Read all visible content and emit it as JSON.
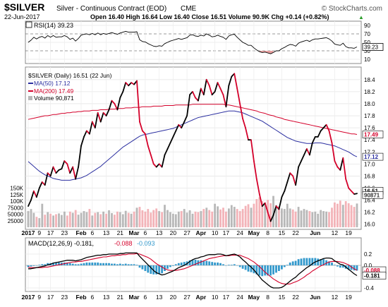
{
  "header": {
    "symbol": "$SILVER",
    "description": "Silver - Continuous Contract (EOD)",
    "exchange": "CME",
    "source": "© StockCharts.com",
    "date": "22-Jun-2017",
    "quote": "Open 16.40  High 16.64  Low 16.40  Close 16.51  Volume 90.9K  Chg +0.14 (+0.82%)",
    "quote_arrow": "▲"
  },
  "rsi_panel": {
    "label": "RSI(14) 39.23",
    "current_badge": "39.23",
    "tick_labels": [
      "90",
      "70",
      "50",
      "30",
      "10"
    ]
  },
  "price_panel": {
    "legend": {
      "price": "$SILVER (Daily) 16.51 (22 Jun)",
      "ma50": "MA(50) 17.12",
      "ma200": "MA(200) 17.49",
      "volume": "Volume 90,871"
    },
    "tick_labels": [
      "18.4",
      "18.2",
      "18.0",
      "17.8",
      "17.6",
      "17.4",
      "17.2",
      "17.0",
      "16.8",
      "16.6",
      "16.4",
      "16.2",
      "16.0"
    ],
    "badges": {
      "ma200": "17.49",
      "ma50": "17.12",
      "price": "16.51",
      "volume": "90871"
    },
    "volume_tick_labels": [
      "150K",
      "125K",
      "100K",
      "75000",
      "50000",
      "25000"
    ]
  },
  "macd_panel": {
    "label": "MACD(12,26,9) -0.181, ",
    "signal_value": "-0.088",
    "histogram_value": "-0.093",
    "tick_labels": [
      "0.2",
      "0.0",
      "-0.2",
      "-0.4"
    ],
    "badges": {
      "signal": "-0.088",
      "macd": "-0.181"
    }
  },
  "x_axis": {
    "tick_labels": [
      "2017",
      "9",
      "17",
      "23",
      "Feb",
      "6",
      "13",
      "21",
      "Mar",
      "6",
      "13",
      "20",
      "27",
      "Apr",
      "10",
      "17",
      "24",
      "May",
      "8",
      "15",
      "22",
      "Jun",
      "12",
      "19"
    ]
  },
  "colors": {
    "price_up": "#000000",
    "price_down": "#d4002a",
    "ma50": "#2b2fa0",
    "ma200": "#d4002a",
    "volume_up": "#b8b8b8",
    "volume_down": "#f3b3b8",
    "macd_hist": "#3399cc",
    "panel_border": "#888888",
    "grid": "#e6e6e6"
  },
  "chart_data": {
    "type": "line",
    "x_dates": [
      "2017-01-03",
      "2017-01-04",
      "2017-01-05",
      "2017-01-06",
      "2017-01-09",
      "2017-01-10",
      "2017-01-11",
      "2017-01-12",
      "2017-01-13",
      "2017-01-17",
      "2017-01-18",
      "2017-01-19",
      "2017-01-20",
      "2017-01-23",
      "2017-01-24",
      "2017-01-25",
      "2017-01-26",
      "2017-01-27",
      "2017-01-30",
      "2017-01-31",
      "2017-02-01",
      "2017-02-02",
      "2017-02-03",
      "2017-02-06",
      "2017-02-07",
      "2017-02-08",
      "2017-02-09",
      "2017-02-10",
      "2017-02-13",
      "2017-02-14",
      "2017-02-15",
      "2017-02-16",
      "2017-02-17",
      "2017-02-21",
      "2017-02-22",
      "2017-02-23",
      "2017-02-24",
      "2017-02-27",
      "2017-02-28",
      "2017-03-01",
      "2017-03-02",
      "2017-03-03",
      "2017-03-06",
      "2017-03-07",
      "2017-03-08",
      "2017-03-09",
      "2017-03-10",
      "2017-03-13",
      "2017-03-14",
      "2017-03-15",
      "2017-03-16",
      "2017-03-17",
      "2017-03-20",
      "2017-03-21",
      "2017-03-22",
      "2017-03-23",
      "2017-03-24",
      "2017-03-27",
      "2017-03-28",
      "2017-03-29",
      "2017-03-30",
      "2017-03-31",
      "2017-04-03",
      "2017-04-04",
      "2017-04-05",
      "2017-04-06",
      "2017-04-07",
      "2017-04-10",
      "2017-04-11",
      "2017-04-12",
      "2017-04-13",
      "2017-04-17",
      "2017-04-18",
      "2017-04-19",
      "2017-04-20",
      "2017-04-21",
      "2017-04-24",
      "2017-04-25",
      "2017-04-26",
      "2017-04-27",
      "2017-04-28",
      "2017-05-01",
      "2017-05-02",
      "2017-05-03",
      "2017-05-04",
      "2017-05-05",
      "2017-05-08",
      "2017-05-09",
      "2017-05-10",
      "2017-05-11",
      "2017-05-12",
      "2017-05-15",
      "2017-05-16",
      "2017-05-17",
      "2017-05-18",
      "2017-05-19",
      "2017-05-22",
      "2017-05-23",
      "2017-05-24",
      "2017-05-25",
      "2017-05-26",
      "2017-05-30",
      "2017-05-31",
      "2017-06-01",
      "2017-06-02",
      "2017-06-05",
      "2017-06-06",
      "2017-06-07",
      "2017-06-08",
      "2017-06-09",
      "2017-06-12",
      "2017-06-13",
      "2017-06-14",
      "2017-06-15",
      "2017-06-16",
      "2017-06-19",
      "2017-06-20",
      "2017-06-21",
      "2017-06-22"
    ],
    "close": [
      16.3,
      16.4,
      16.55,
      16.45,
      16.6,
      16.7,
      16.65,
      16.85,
      16.8,
      16.95,
      16.85,
      16.9,
      16.92,
      17.05,
      17.0,
      16.85,
      16.95,
      16.75,
      16.95,
      17.3,
      17.45,
      17.55,
      17.5,
      17.7,
      17.6,
      17.85,
      17.7,
      17.85,
      17.8,
      17.9,
      18.05,
      18.0,
      17.9,
      18.1,
      18.2,
      18.35,
      18.3,
      18.35,
      18.32,
      18.38,
      17.7,
      17.55,
      17.5,
      17.3,
      17.15,
      17.0,
      16.95,
      17.0,
      16.95,
      17.15,
      17.25,
      17.35,
      17.45,
      17.55,
      17.65,
      17.6,
      17.7,
      17.8,
      18.15,
      18.2,
      18.1,
      18.05,
      18.25,
      18.15,
      18.4,
      18.3,
      18.15,
      18.2,
      18.35,
      18.25,
      18.15,
      17.95,
      18.3,
      18.45,
      18.5,
      18.25,
      18.0,
      17.75,
      17.6,
      17.4,
      17.4,
      17.05,
      16.75,
      16.5,
      16.3,
      16.35,
      16.2,
      16.05,
      16.15,
      16.3,
      16.25,
      16.45,
      16.55,
      16.7,
      16.85,
      16.8,
      16.65,
      16.95,
      17.05,
      17.15,
      17.25,
      17.15,
      17.35,
      17.45,
      17.45,
      17.55,
      17.6,
      17.65,
      17.55,
      17.35,
      17.05,
      16.95,
      16.9,
      17.1,
      16.75,
      16.6,
      16.55,
      16.5,
      16.51
    ],
    "ma50": [
      17.04,
      17.0,
      16.96,
      16.92,
      16.88,
      16.85,
      16.82,
      16.8,
      16.78,
      16.76,
      16.75,
      16.74,
      16.73,
      16.73,
      16.73,
      16.73,
      16.74,
      16.75,
      16.76,
      16.77,
      16.79,
      16.81,
      16.84,
      16.87,
      16.9,
      16.93,
      16.96,
      17.0,
      17.04,
      17.08,
      17.12,
      17.16,
      17.2,
      17.24,
      17.28,
      17.31,
      17.34,
      17.37,
      17.4,
      17.43,
      17.46,
      17.48,
      17.49,
      17.5,
      17.51,
      17.52,
      17.53,
      17.54,
      17.55,
      17.56,
      17.57,
      17.58,
      17.59,
      17.61,
      17.63,
      17.65,
      17.67,
      17.69,
      17.71,
      17.73,
      17.75,
      17.77,
      17.78,
      17.79,
      17.8,
      17.81,
      17.82,
      17.83,
      17.84,
      17.85,
      17.86,
      17.87,
      17.88,
      17.88,
      17.88,
      17.87,
      17.86,
      17.85,
      17.83,
      17.81,
      17.79,
      17.77,
      17.75,
      17.73,
      17.71,
      17.68,
      17.65,
      17.62,
      17.59,
      17.56,
      17.53,
      17.5,
      17.47,
      17.44,
      17.42,
      17.4,
      17.38,
      17.37,
      17.36,
      17.35,
      17.34,
      17.34,
      17.34,
      17.35,
      17.35,
      17.35,
      17.34,
      17.33,
      17.32,
      17.31,
      17.3,
      17.28,
      17.26,
      17.24,
      17.22,
      17.2,
      17.17,
      17.14,
      17.12
    ],
    "ma200": [
      17.74,
      17.75,
      17.76,
      17.77,
      17.78,
      17.79,
      17.8,
      17.8,
      17.81,
      17.82,
      17.82,
      17.83,
      17.84,
      17.84,
      17.85,
      17.85,
      17.86,
      17.86,
      17.87,
      17.87,
      17.88,
      17.88,
      17.88,
      17.89,
      17.89,
      17.89,
      17.9,
      17.9,
      17.9,
      17.91,
      17.91,
      17.91,
      17.92,
      17.92,
      17.92,
      17.93,
      17.93,
      17.93,
      17.94,
      17.94,
      17.94,
      17.95,
      17.95,
      17.95,
      17.95,
      17.96,
      17.96,
      17.96,
      17.96,
      17.97,
      17.97,
      17.97,
      17.97,
      17.98,
      17.98,
      17.98,
      17.98,
      17.98,
      17.98,
      17.99,
      17.99,
      17.99,
      17.99,
      17.99,
      17.99,
      17.99,
      17.99,
      17.99,
      17.99,
      17.99,
      17.99,
      17.98,
      17.98,
      17.97,
      17.96,
      17.95,
      17.94,
      17.93,
      17.92,
      17.91,
      17.9,
      17.89,
      17.88,
      17.86,
      17.85,
      17.84,
      17.82,
      17.81,
      17.8,
      17.78,
      17.77,
      17.76,
      17.74,
      17.73,
      17.72,
      17.71,
      17.7,
      17.69,
      17.68,
      17.67,
      17.66,
      17.65,
      17.64,
      17.63,
      17.62,
      17.61,
      17.6,
      17.59,
      17.58,
      17.57,
      17.56,
      17.55,
      17.54,
      17.53,
      17.52,
      17.51,
      17.5,
      17.5,
      17.49
    ],
    "volume": [
      62000,
      70000,
      55000,
      40000,
      35000,
      90000,
      48000,
      58000,
      52000,
      45000,
      50000,
      53000,
      47000,
      60000,
      45000,
      60000,
      55000,
      66000,
      48000,
      55000,
      62000,
      58000,
      70000,
      45000,
      55000,
      58000,
      50000,
      60000,
      52000,
      65000,
      54000,
      48000,
      60000,
      58000,
      50000,
      63000,
      55000,
      52000,
      60000,
      75000,
      78000,
      65000,
      60000,
      70000,
      56000,
      66000,
      72000,
      62000,
      58000,
      86000,
      66000,
      58000,
      52000,
      50000,
      60000,
      62000,
      70000,
      56000,
      65000,
      52000,
      60000,
      58000,
      62000,
      70000,
      75000,
      66000,
      60000,
      90000,
      80000,
      68000,
      75000,
      60000,
      72000,
      85000,
      78000,
      70000,
      62000,
      70000,
      82000,
      88000,
      75000,
      90000,
      108000,
      115000,
      100000,
      95000,
      105000,
      92000,
      120000,
      85000,
      80000,
      72000,
      70000,
      90000,
      72000,
      68000,
      60000,
      78000,
      64000,
      70000,
      66000,
      62000,
      58000,
      60000,
      52000,
      66000,
      62000,
      60000,
      58000,
      75000,
      95000,
      90000,
      102000,
      86000,
      100000,
      92000,
      85000,
      78000,
      90871
    ],
    "rsi": [
      50,
      55,
      62,
      58,
      62,
      64,
      60,
      66,
      62,
      66,
      62,
      63,
      63,
      66,
      63,
      57,
      60,
      53,
      59,
      67,
      69,
      70,
      68,
      71,
      68,
      72,
      68,
      71,
      69,
      71,
      73,
      71,
      69,
      72,
      74,
      76,
      74,
      74,
      74,
      75,
      56,
      52,
      51,
      47,
      44,
      41,
      40,
      42,
      41,
      47,
      50,
      53,
      55,
      57,
      59,
      57,
      59,
      61,
      67,
      68,
      65,
      64,
      67,
      65,
      70,
      67,
      63,
      64,
      67,
      64,
      62,
      57,
      65,
      68,
      69,
      62,
      56,
      50,
      47,
      43,
      43,
      37,
      32,
      28,
      26,
      27,
      25,
      23,
      26,
      30,
      30,
      35,
      38,
      42,
      45,
      44,
      41,
      48,
      51,
      53,
      55,
      52,
      56,
      58,
      58,
      59,
      60,
      61,
      58,
      53,
      46,
      44,
      43,
      48,
      40,
      37,
      37,
      36,
      39.23
    ],
    "macd": [
      -0.06,
      -0.06,
      -0.05,
      -0.04,
      -0.03,
      -0.02,
      -0.01,
      0.01,
      0.02,
      0.04,
      0.05,
      0.06,
      0.07,
      0.08,
      0.09,
      0.09,
      0.09,
      0.08,
      0.09,
      0.1,
      0.12,
      0.14,
      0.15,
      0.16,
      0.17,
      0.18,
      0.18,
      0.19,
      0.19,
      0.2,
      0.2,
      0.2,
      0.2,
      0.21,
      0.21,
      0.22,
      0.22,
      0.22,
      0.22,
      0.22,
      0.16,
      0.11,
      0.06,
      0.01,
      -0.04,
      -0.09,
      -0.13,
      -0.15,
      -0.17,
      -0.16,
      -0.14,
      -0.12,
      -0.1,
      -0.07,
      -0.04,
      -0.02,
      0.0,
      0.03,
      0.07,
      0.1,
      0.12,
      0.13,
      0.15,
      0.16,
      0.18,
      0.19,
      0.19,
      0.19,
      0.2,
      0.2,
      0.19,
      0.17,
      0.18,
      0.19,
      0.2,
      0.18,
      0.15,
      0.1,
      0.06,
      0.01,
      -0.03,
      -0.08,
      -0.14,
      -0.2,
      -0.26,
      -0.3,
      -0.34,
      -0.38,
      -0.4,
      -0.4,
      -0.4,
      -0.39,
      -0.36,
      -0.32,
      -0.28,
      -0.24,
      -0.21,
      -0.16,
      -0.12,
      -0.08,
      -0.04,
      -0.01,
      0.03,
      0.06,
      0.08,
      0.1,
      0.12,
      0.13,
      0.13,
      0.12,
      0.08,
      0.05,
      0.02,
      0.01,
      -0.03,
      -0.07,
      -0.11,
      -0.15,
      -0.181
    ],
    "macd_signal": [
      -0.03,
      -0.04,
      -0.04,
      -0.04,
      -0.04,
      -0.04,
      -0.03,
      -0.03,
      -0.02,
      -0.01,
      0.0,
      0.01,
      0.02,
      0.03,
      0.04,
      0.05,
      0.06,
      0.06,
      0.07,
      0.07,
      0.08,
      0.09,
      0.1,
      0.11,
      0.12,
      0.13,
      0.14,
      0.15,
      0.15,
      0.16,
      0.17,
      0.17,
      0.18,
      0.18,
      0.19,
      0.19,
      0.2,
      0.2,
      0.2,
      0.21,
      0.2,
      0.18,
      0.16,
      0.14,
      0.11,
      0.07,
      0.03,
      0.0,
      -0.03,
      -0.06,
      -0.08,
      -0.09,
      -0.09,
      -0.09,
      -0.08,
      -0.07,
      -0.06,
      -0.04,
      -0.02,
      0.0,
      0.02,
      0.04,
      0.06,
      0.08,
      0.1,
      0.12,
      0.13,
      0.14,
      0.15,
      0.16,
      0.17,
      0.17,
      0.17,
      0.18,
      0.18,
      0.18,
      0.18,
      0.16,
      0.14,
      0.12,
      0.09,
      0.06,
      0.02,
      -0.02,
      -0.07,
      -0.12,
      -0.16,
      -0.2,
      -0.24,
      -0.27,
      -0.3,
      -0.32,
      -0.33,
      -0.33,
      -0.33,
      -0.31,
      -0.29,
      -0.27,
      -0.24,
      -0.21,
      -0.17,
      -0.14,
      -0.1,
      -0.07,
      -0.04,
      -0.01,
      0.01,
      0.04,
      0.06,
      0.07,
      0.07,
      0.07,
      0.06,
      0.05,
      0.03,
      0.01,
      -0.03,
      -0.06,
      -0.088
    ],
    "macd_hist_values": [
      -0.03,
      -0.02,
      -0.01,
      0.0,
      0.01,
      0.02,
      0.02,
      0.04,
      0.04,
      0.05,
      0.05,
      0.05,
      0.05,
      0.05,
      0.05,
      0.04,
      0.03,
      0.02,
      0.02,
      0.03,
      0.04,
      0.05,
      0.05,
      0.05,
      0.05,
      0.05,
      0.04,
      0.04,
      0.04,
      0.04,
      0.03,
      0.03,
      0.02,
      0.03,
      0.02,
      0.03,
      0.02,
      0.02,
      0.02,
      0.01,
      -0.04,
      -0.07,
      -0.1,
      -0.13,
      -0.15,
      -0.16,
      -0.16,
      -0.15,
      -0.14,
      -0.1,
      -0.06,
      -0.03,
      -0.01,
      0.02,
      0.04,
      0.05,
      0.06,
      0.07,
      0.09,
      0.1,
      0.1,
      0.09,
      0.09,
      0.08,
      0.08,
      0.07,
      0.06,
      0.05,
      0.05,
      0.04,
      0.02,
      0.0,
      0.01,
      0.01,
      0.02,
      0.0,
      -0.03,
      -0.06,
      -0.08,
      -0.11,
      -0.12,
      -0.14,
      -0.16,
      -0.18,
      -0.19,
      -0.18,
      -0.18,
      -0.18,
      -0.16,
      -0.13,
      -0.1,
      -0.07,
      -0.03,
      0.01,
      0.05,
      0.07,
      0.08,
      0.11,
      0.12,
      0.13,
      0.13,
      0.13,
      0.13,
      0.13,
      0.12,
      0.11,
      0.11,
      0.09,
      0.07,
      0.05,
      0.01,
      -0.02,
      -0.04,
      -0.04,
      -0.06,
      -0.08,
      -0.08,
      -0.09,
      -0.093
    ],
    "ylim_price": [
      15.95,
      18.55
    ],
    "ylim_rsi": [
      0,
      100
    ],
    "ylim_volume": [
      0,
      600000
    ],
    "ylim_macd": [
      -0.45,
      0.3
    ]
  }
}
